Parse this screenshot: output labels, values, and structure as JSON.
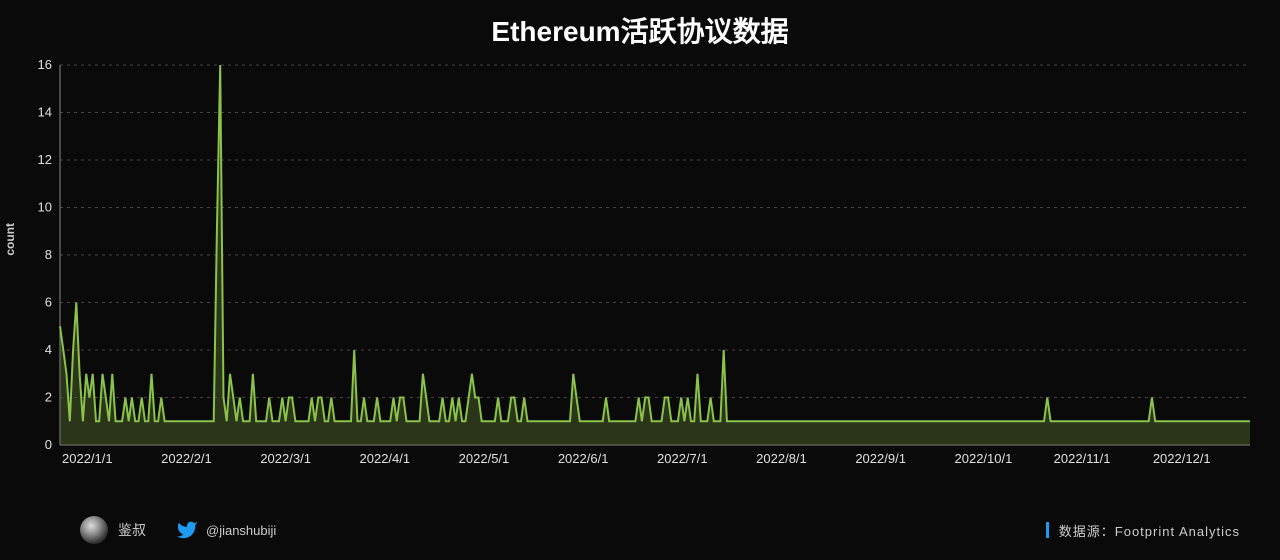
{
  "title": "Ethereum活跃协议数据",
  "chart": {
    "type": "area-line",
    "ylabel": "count",
    "ylim": [
      0,
      16
    ],
    "ytick_step": 2,
    "xlabels": [
      "2022/1/1",
      "2022/2/1",
      "2022/3/1",
      "2022/4/1",
      "2022/5/1",
      "2022/6/1",
      "2022/7/1",
      "2022/8/1",
      "2022/9/1",
      "2022/10/1",
      "2022/11/1",
      "2022/12/1"
    ],
    "line_color": "#8bc34a",
    "area_color": "#556b2f",
    "area_opacity": 0.45,
    "background_color": "#0a0a0a",
    "grid_color": "#444444",
    "axis_color": "#888888",
    "tick_font_size": 13,
    "values": [
      5,
      4,
      3,
      1,
      4,
      6,
      3,
      1,
      3,
      2,
      3,
      1,
      1,
      3,
      2,
      1,
      3,
      1,
      1,
      1,
      2,
      1,
      2,
      1,
      1,
      2,
      1,
      1,
      3,
      1,
      1,
      2,
      1,
      1,
      1,
      1,
      1,
      1,
      1,
      1,
      1,
      1,
      1,
      1,
      1,
      1,
      1,
      1,
      9,
      16,
      2,
      1,
      3,
      2,
      1,
      2,
      1,
      1,
      1,
      3,
      1,
      1,
      1,
      1,
      2,
      1,
      1,
      1,
      2,
      1,
      2,
      2,
      1,
      1,
      1,
      1,
      1,
      2,
      1,
      2,
      2,
      1,
      1,
      2,
      1,
      1,
      1,
      1,
      1,
      1,
      4,
      1,
      1,
      2,
      1,
      1,
      1,
      2,
      1,
      1,
      1,
      1,
      2,
      1,
      2,
      2,
      1,
      1,
      1,
      1,
      1,
      3,
      2,
      1,
      1,
      1,
      1,
      2,
      1,
      1,
      2,
      1,
      2,
      1,
      1,
      2,
      3,
      2,
      2,
      1,
      1,
      1,
      1,
      1,
      2,
      1,
      1,
      1,
      2,
      2,
      1,
      1,
      2,
      1,
      1,
      1,
      1,
      1,
      1,
      1,
      1,
      1,
      1,
      1,
      1,
      1,
      1,
      3,
      2,
      1,
      1,
      1,
      1,
      1,
      1,
      1,
      1,
      2,
      1,
      1,
      1,
      1,
      1,
      1,
      1,
      1,
      1,
      2,
      1,
      2,
      2,
      1,
      1,
      1,
      1,
      2,
      2,
      1,
      1,
      1,
      2,
      1,
      2,
      1,
      1,
      3,
      1,
      1,
      1,
      2,
      1,
      1,
      1,
      4,
      1,
      1,
      1,
      1,
      1,
      1,
      1,
      1,
      1,
      1,
      1,
      1,
      1,
      1,
      1,
      1,
      1,
      1,
      1,
      1,
      1,
      1,
      1,
      1,
      1,
      1,
      1,
      1,
      1,
      1,
      1,
      1,
      1,
      1,
      1,
      1,
      1,
      1,
      1,
      1,
      1,
      1,
      1,
      1,
      1,
      1,
      1,
      1,
      1,
      1,
      1,
      1,
      1,
      1,
      1,
      1,
      1,
      1,
      1,
      1,
      1,
      1,
      1,
      1,
      1,
      1,
      1,
      1,
      1,
      1,
      1,
      1,
      1,
      1,
      1,
      1,
      1,
      1,
      1,
      1,
      1,
      1,
      1,
      1,
      1,
      1,
      1,
      1,
      1,
      1,
      1,
      1,
      1,
      1,
      1,
      1,
      1,
      1,
      2,
      1,
      1,
      1,
      1,
      1,
      1,
      1,
      1,
      1,
      1,
      1,
      1,
      1,
      1,
      1,
      1,
      1,
      1,
      1,
      1,
      1,
      1,
      1,
      1,
      1,
      1,
      1,
      1,
      1,
      1,
      1,
      2,
      1,
      1,
      1,
      1,
      1,
      1,
      1,
      1,
      1,
      1,
      1,
      1,
      1,
      1,
      1,
      1,
      1,
      1,
      1,
      1,
      1,
      1,
      1,
      1,
      1,
      1,
      1,
      1,
      1,
      1
    ]
  },
  "footer": {
    "author_name": "鉴叔",
    "twitter_handle": "@jianshubiji",
    "source_label": "数据源：Footprint  Analytics"
  }
}
